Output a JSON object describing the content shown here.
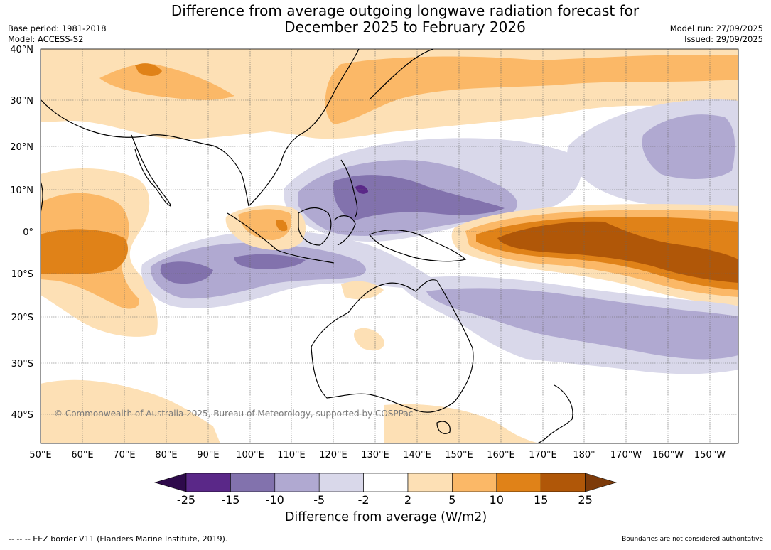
{
  "title": {
    "line1": "Difference from average outgoing longwave radiation forecast for",
    "line2": "December 2025 to February 2026"
  },
  "meta": {
    "base_period": "Base period: 1981-2018",
    "model": "Model: ACCESS-S2",
    "model_run": "Model run: 27/09/2025",
    "issued": "Issued: 29/09/2025"
  },
  "map": {
    "latitude_labels": [
      "40°N",
      "30°N",
      "20°N",
      "10°N",
      "0°",
      "10°S",
      "20°S",
      "30°S",
      "40°S"
    ],
    "longitude_labels": [
      "50°E",
      "60°E",
      "70°E",
      "80°E",
      "90°E",
      "100°E",
      "110°E",
      "120°E",
      "130°E",
      "140°E",
      "150°E",
      "160°E",
      "170°E",
      "180°",
      "170°W",
      "160°W",
      "150°W"
    ],
    "copyright": "© Commonwealth of Australia 2025, Bureau of Meteorology, supported by COSPPac"
  },
  "colorbar": {
    "ticks": [
      "-25",
      "-15",
      "-10",
      "-5",
      "-2",
      "2",
      "5",
      "10",
      "15",
      "25"
    ],
    "colors": [
      "#2e0a4b",
      "#5a2888",
      "#8272ad",
      "#b0a9d1",
      "#d9d8ea",
      "#ffffff",
      "#fde0b5",
      "#fbb867",
      "#e08218",
      "#b05708",
      "#7d3b0a"
    ],
    "label": "Difference from average (W/m2)"
  },
  "footer": {
    "eez_legend": "--  --  -- EEZ border V11 (Flanders Marine Institute, 2019).",
    "disclaimer": "Boundaries are not considered authoritative"
  }
}
